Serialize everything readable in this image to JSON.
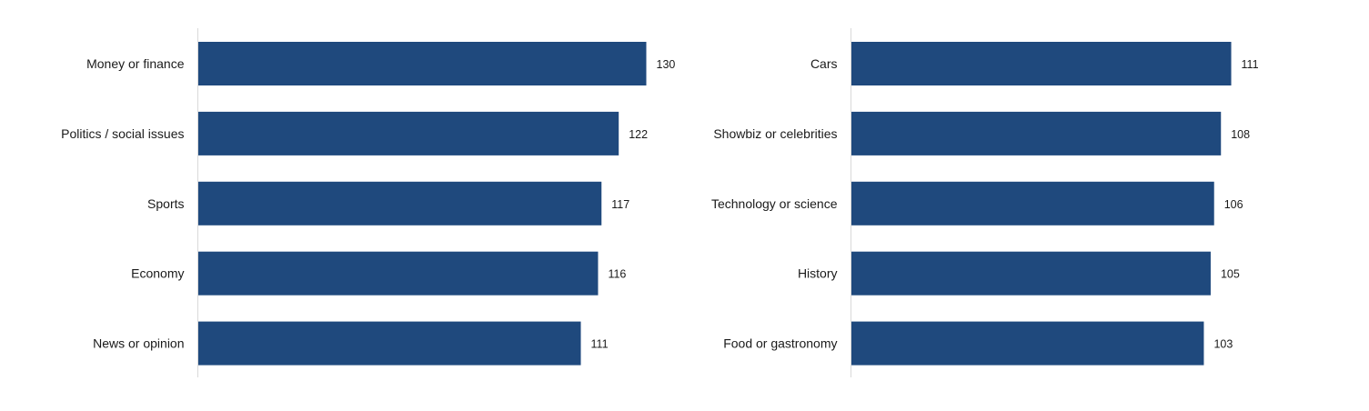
{
  "chart_data": [
    {
      "type": "bar",
      "orientation": "horizontal",
      "categories": [
        "Money or finance",
        "Politics / social issues",
        "Sports",
        "Economy",
        "News or opinion"
      ],
      "values": [
        130,
        122,
        117,
        116,
        111
      ],
      "value_labels": [
        "130",
        "122",
        "117",
        "116",
        "111"
      ],
      "title": "",
      "xlabel": "",
      "ylabel": "",
      "xlim": [
        0,
        130
      ],
      "grid": false,
      "bar_color": "#1f497d"
    },
    {
      "type": "bar",
      "orientation": "horizontal",
      "categories": [
        "Cars",
        "Showbiz or celebrities",
        "Technology or science",
        "History",
        "Food or gastronomy"
      ],
      "values": [
        111,
        108,
        106,
        105,
        103
      ],
      "value_labels": [
        "111",
        "108",
        "106",
        "105",
        "103"
      ],
      "title": "",
      "xlabel": "",
      "ylabel": "",
      "xlim": [
        0,
        130
      ],
      "grid": false,
      "bar_color": "#1f497d"
    }
  ],
  "colors": {
    "bar": "#1f497d",
    "axis": "#d9d9d9",
    "text": "#1a1a1a"
  }
}
